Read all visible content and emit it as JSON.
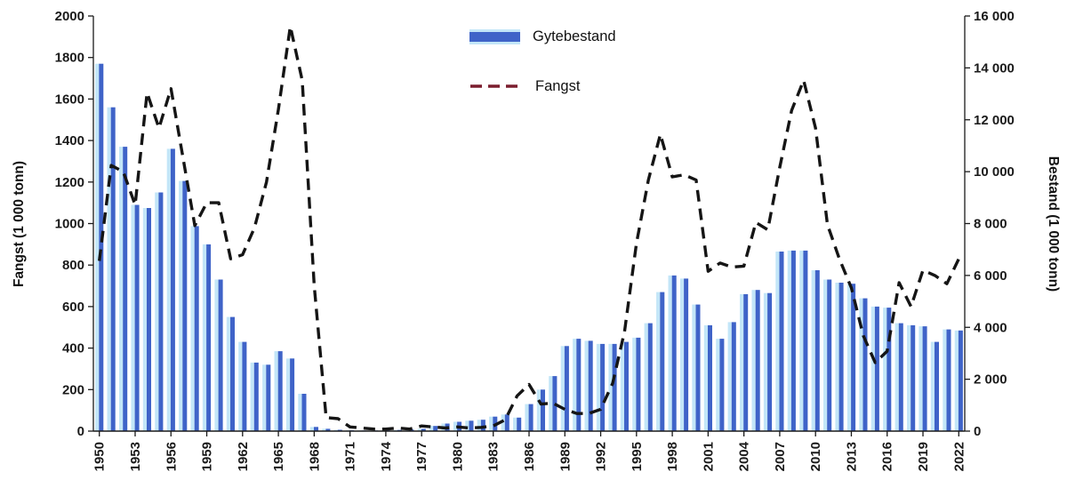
{
  "figure": {
    "type": "combo-chart",
    "background": "#ffffff"
  },
  "axes": {
    "left_title": "Fangst (1 000 tonn)",
    "right_title": "Bestand (1 000 tonn)"
  },
  "legend": {
    "items": [
      {
        "label": "Gytebestand",
        "marker": "bar",
        "color": "#3f63c8"
      },
      {
        "label": "Fangst",
        "marker": "dashed-line",
        "color": "#7b1e2e"
      }
    ]
  },
  "colors": {
    "bar_dark": "#3f63c8",
    "bar_light": "#c3e6f8",
    "line": "#151515",
    "legend_dash": "#7b1e2e",
    "axis": "#1a1a1a"
  },
  "chart_data": {
    "type": "bar+line",
    "years": [
      1950,
      1951,
      1952,
      1953,
      1954,
      1955,
      1956,
      1957,
      1958,
      1959,
      1960,
      1961,
      1962,
      1963,
      1964,
      1965,
      1966,
      1967,
      1968,
      1969,
      1970,
      1971,
      1972,
      1973,
      1974,
      1975,
      1976,
      1977,
      1978,
      1979,
      1980,
      1981,
      1982,
      1983,
      1984,
      1985,
      1986,
      1987,
      1988,
      1989,
      1990,
      1991,
      1992,
      1993,
      1994,
      1995,
      1996,
      1997,
      1998,
      1999,
      2000,
      2001,
      2002,
      2003,
      2004,
      2005,
      2006,
      2007,
      2008,
      2009,
      2010,
      2011,
      2012,
      2013,
      2014,
      2015,
      2016,
      2017,
      2018,
      2019,
      2020,
      2021,
      2022
    ],
    "series": [
      {
        "name": "Gytebestand",
        "type": "bar",
        "axis": "right",
        "values": [
          14160,
          12480,
          10960,
          8720,
          8600,
          9200,
          10880,
          9640,
          7900,
          7200,
          5840,
          4400,
          3440,
          2640,
          2560,
          3080,
          2800,
          1440,
          160,
          90,
          50,
          30,
          25,
          25,
          30,
          45,
          60,
          90,
          200,
          290,
          360,
          400,
          440,
          560,
          640,
          520,
          1040,
          1600,
          2120,
          3280,
          3560,
          3480,
          3360,
          3360,
          3440,
          3600,
          4160,
          5360,
          6000,
          5880,
          4880,
          4080,
          3560,
          4200,
          5280,
          5440,
          5320,
          6920,
          6960,
          6960,
          6200,
          5840,
          5720,
          5680,
          5120,
          4800,
          4760,
          4160,
          4080,
          4040,
          3440,
          3920,
          3880
        ]
      },
      {
        "name": "Fangst",
        "type": "line",
        "axis": "left",
        "values": [
          820,
          1280,
          1250,
          1090,
          1630,
          1460,
          1650,
          1320,
          990,
          1100,
          1100,
          830,
          850,
          980,
          1200,
          1550,
          1950,
          1690,
          700,
          65,
          60,
          20,
          15,
          10,
          10,
          15,
          10,
          25,
          20,
          15,
          20,
          15,
          18,
          25,
          55,
          170,
          225,
          130,
          135,
          105,
          85,
          85,
          105,
          230,
          480,
          905,
          1210,
          1430,
          1225,
          1235,
          1210,
          770,
          810,
          790,
          795,
          1005,
          970,
          1270,
          1545,
          1690,
          1460,
          995,
          830,
          690,
          460,
          330,
          385,
          715,
          600,
          775,
          750,
          710,
          830
        ]
      }
    ],
    "left_axis": {
      "label": "Fangst (1 000 tonn)",
      "range": [
        0,
        2000
      ],
      "tick_values": [
        0,
        200,
        400,
        600,
        800,
        1000,
        1200,
        1400,
        1600,
        1800,
        2000
      ],
      "tick_labels": [
        "0",
        "200",
        "400",
        "600",
        "800",
        "1000",
        "1200",
        "1400",
        "1600",
        "1800",
        "2000"
      ]
    },
    "right_axis": {
      "label": "Bestand (1 000 tonn)",
      "range": [
        0,
        16000
      ],
      "tick_values": [
        0,
        2000,
        4000,
        6000,
        8000,
        10000,
        12000,
        14000,
        16000
      ],
      "tick_labels": [
        "0",
        "2 000",
        "4 000",
        "6 000",
        "8 000",
        "10 000",
        "12 000",
        "14 000",
        "16 000"
      ]
    },
    "x_ticks": {
      "years": [
        1950,
        1953,
        1956,
        1959,
        1962,
        1965,
        1968,
        1971,
        1974,
        1977,
        1980,
        1983,
        1986,
        1989,
        1992,
        1995,
        1998,
        2001,
        2004,
        2007,
        2010,
        2013,
        2016,
        2019,
        2022
      ],
      "labels": [
        "1950",
        "1953",
        "1956",
        "1959",
        "1962",
        "1965",
        "1968",
        "1971",
        "1974",
        "1977",
        "1980",
        "1983",
        "1986",
        "1989",
        "1992",
        "1995",
        "1998",
        "2001",
        "2004",
        "2007",
        "2010",
        "2013",
        "2016",
        "2019",
        "2022"
      ]
    },
    "grid": false,
    "legend_position": "top-center"
  }
}
